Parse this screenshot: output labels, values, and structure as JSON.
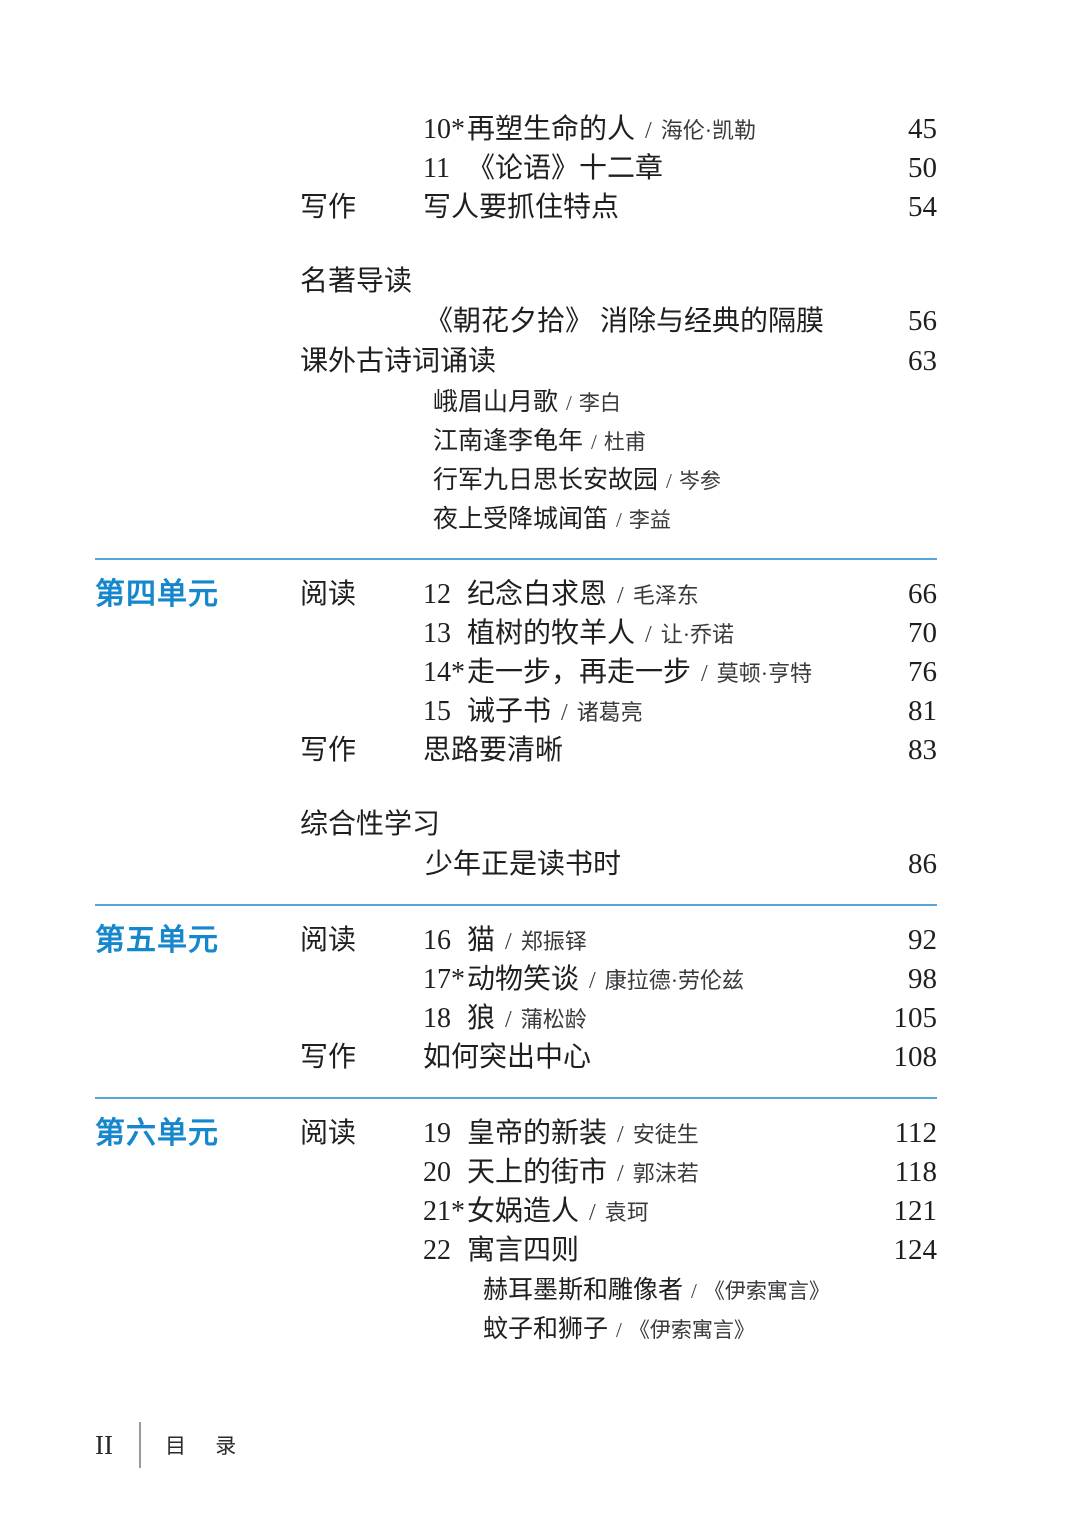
{
  "ui": {
    "slash": "/",
    "accent_color": "#1687cd",
    "divider_color": "#54a8db"
  },
  "footer": {
    "page_number": "II",
    "label": "目 录"
  },
  "blocks": [
    {
      "divider": false,
      "rows": [
        {
          "type": "lesson",
          "number": "10*",
          "title": "再塑生命的人",
          "author": "海伦·凯勒",
          "page": "45"
        },
        {
          "type": "lesson",
          "number": "11",
          "title": "《论语》十二章",
          "page": "50"
        },
        {
          "type": "section",
          "section": "写作",
          "title": "写人要抓住特点",
          "page": "54"
        }
      ]
    },
    {
      "divider": false,
      "rows": [
        {
          "type": "head",
          "section": "名著导读"
        },
        {
          "type": "sub",
          "title": "《朝花夕拾》 消除与经典的隔膜",
          "page": "56"
        },
        {
          "type": "head",
          "section": "课外古诗词诵读",
          "page": "63"
        },
        {
          "type": "poem",
          "title": "峨眉山月歌",
          "author": "李白"
        },
        {
          "type": "poem",
          "title": "江南逢李龟年",
          "author": "杜甫"
        },
        {
          "type": "poem",
          "title": "行军九日思长安故园",
          "author": "岑参"
        },
        {
          "type": "poem",
          "title": "夜上受降城闻笛",
          "author": "李益"
        }
      ]
    },
    {
      "divider": true,
      "unit": "第四单元",
      "rows": [
        {
          "type": "lesson",
          "section": "阅读",
          "number": "12",
          "title": "纪念白求恩",
          "author": "毛泽东",
          "page": "66"
        },
        {
          "type": "lesson",
          "number": "13",
          "title": "植树的牧羊人",
          "author": "让·乔诺",
          "page": "70"
        },
        {
          "type": "lesson",
          "number": "14*",
          "title": "走一步，再走一步",
          "author": "莫顿·亨特",
          "page": "76"
        },
        {
          "type": "lesson",
          "number": "15",
          "title": "诫子书",
          "author": "诸葛亮",
          "page": "81"
        },
        {
          "type": "section",
          "section": "写作",
          "title": "思路要清晰",
          "page": "83"
        }
      ]
    },
    {
      "divider": false,
      "rows": [
        {
          "type": "head",
          "section": "综合性学习"
        },
        {
          "type": "sub",
          "title": "少年正是读书时",
          "page": "86"
        }
      ]
    },
    {
      "divider": true,
      "unit": "第五单元",
      "rows": [
        {
          "type": "lesson",
          "section": "阅读",
          "number": "16",
          "title": "猫",
          "author": "郑振铎",
          "page": "92"
        },
        {
          "type": "lesson",
          "number": "17*",
          "title": "动物笑谈",
          "author": "康拉德·劳伦兹",
          "page": "98"
        },
        {
          "type": "lesson",
          "number": "18",
          "title": "狼",
          "author": "蒲松龄",
          "page": "105"
        },
        {
          "type": "section",
          "section": "写作",
          "title": "如何突出中心",
          "page": "108"
        }
      ]
    },
    {
      "divider": true,
      "unit": "第六单元",
      "rows": [
        {
          "type": "lesson",
          "section": "阅读",
          "number": "19",
          "title": "皇帝的新装",
          "author": "安徒生",
          "page": "112"
        },
        {
          "type": "lesson",
          "number": "20",
          "title": "天上的街市",
          "author": "郭沫若",
          "page": "118"
        },
        {
          "type": "lesson",
          "number": "21*",
          "title": "女娲造人",
          "author": "袁珂",
          "page": "121"
        },
        {
          "type": "lesson",
          "number": "22",
          "title": "寓言四则",
          "page": "124"
        },
        {
          "type": "fable",
          "title": "赫耳墨斯和雕像者",
          "author": "《伊索寓言》"
        },
        {
          "type": "fable",
          "title": "蚊子和狮子",
          "author": "《伊索寓言》"
        }
      ]
    }
  ]
}
